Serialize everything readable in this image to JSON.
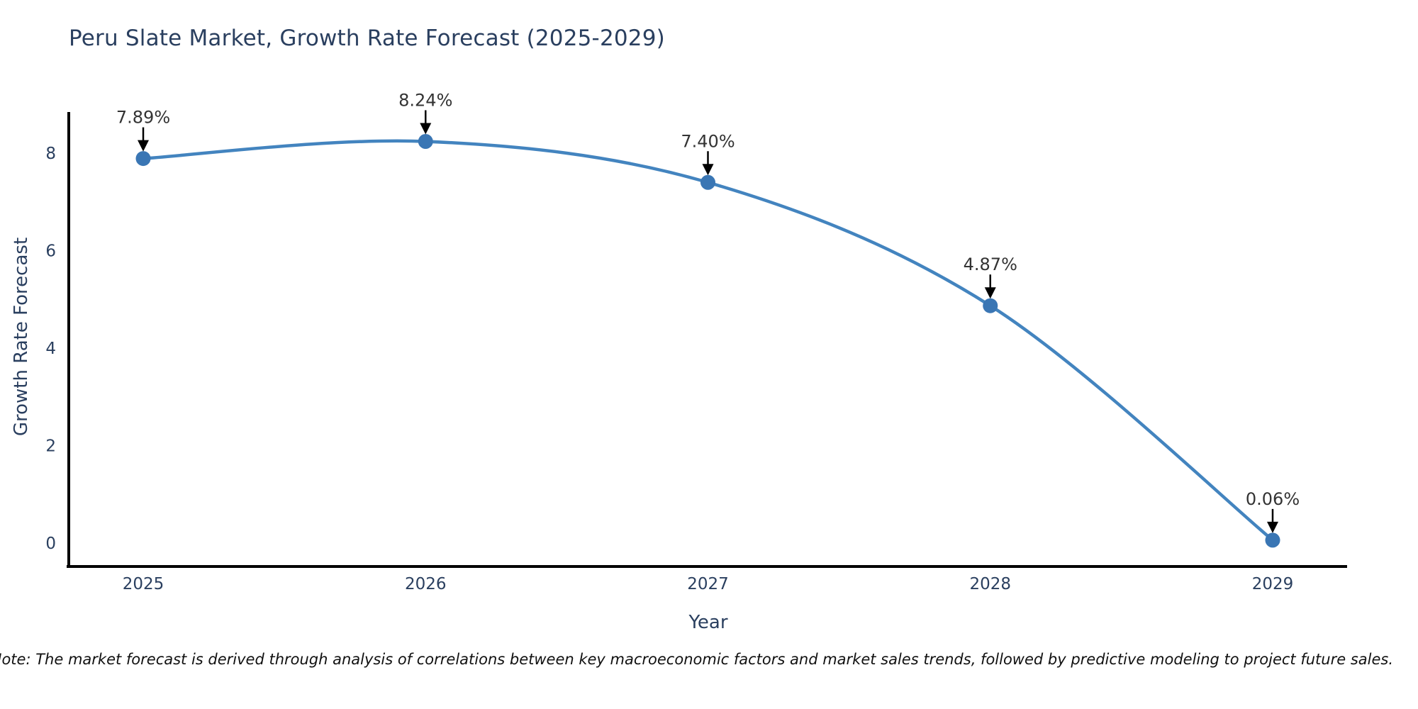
{
  "note": "Note: The market forecast is derived through analysis of correlations between key macroeconomic factors and market sales trends, followed by predictive modeling to project future sales.",
  "chart_data": {
    "type": "line",
    "title": "Peru Slate Market, Growth Rate Forecast (2025-2029)",
    "xlabel": "Year",
    "ylabel": "Growth Rate Forecast",
    "categories": [
      "2025",
      "2026",
      "2027",
      "2028",
      "2029"
    ],
    "values": [
      7.89,
      8.24,
      7.4,
      4.87,
      0.06
    ],
    "point_labels": [
      "7.89%",
      "8.24%",
      "7.40%",
      "4.87%",
      "0.06%"
    ],
    "yticks": [
      0,
      2,
      4,
      6,
      8
    ],
    "ylim": [
      0,
      8.8
    ],
    "grid": false,
    "legend": "none",
    "line_shape": "spline",
    "annotation_arrows": true,
    "colors": {
      "line": "#4384bf",
      "marker": "#3a76b4",
      "axis": "#000000",
      "axis_text": "#2a3f5f",
      "title_text": "#2a3f5f",
      "annotation_text": "#333333",
      "arrow": "#000000",
      "background": "#ffffff"
    }
  }
}
